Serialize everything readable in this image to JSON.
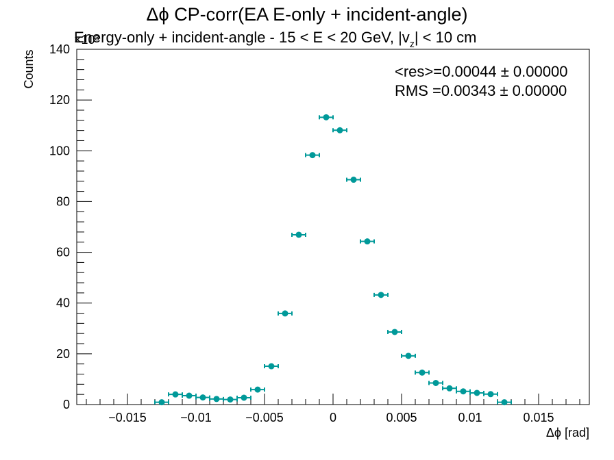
{
  "chart_data": {
    "type": "scatter",
    "title": "Δϕ CP-corr(EA E-only + incident-angle)",
    "subtitle_prefix": "Energy-only + incident-angle   -   15 < E < 20 GeV, |v",
    "subtitle_sub": "z",
    "subtitle_suffix": "| < 10 cm",
    "xlabel": "Δϕ  [rad]",
    "ylabel": "Counts",
    "y_exponent_label": "×10³",
    "xlim": [
      -0.0187,
      0.0187
    ],
    "ylim": [
      0,
      140
    ],
    "x_ticks": [
      {
        "value": -0.015,
        "label": "−0.015"
      },
      {
        "value": -0.01,
        "label": "−0.01"
      },
      {
        "value": -0.005,
        "label": "−0.005"
      },
      {
        "value": 0,
        "label": "0"
      },
      {
        "value": 0.005,
        "label": "0.005"
      },
      {
        "value": 0.01,
        "label": "0.01"
      },
      {
        "value": 0.015,
        "label": "0.015"
      }
    ],
    "y_ticks": [
      {
        "value": 0,
        "label": "0"
      },
      {
        "value": 20,
        "label": "20"
      },
      {
        "value": 40,
        "label": "40"
      },
      {
        "value": 60,
        "label": "60"
      },
      {
        "value": 80,
        "label": "80"
      },
      {
        "value": 100,
        "label": "100"
      },
      {
        "value": 120,
        "label": "120"
      },
      {
        "value": 140,
        "label": "140"
      }
    ],
    "bin_width": 0.001,
    "stats": [
      "<res>=0.00044 ± 0.00000",
      "RMS =0.00343 ± 0.00000"
    ],
    "marker_color": "#009999",
    "grid": false,
    "legend": "none",
    "points": [
      {
        "x": -0.0125,
        "y": 0.9
      },
      {
        "x": -0.0115,
        "y": 4.0
      },
      {
        "x": -0.0105,
        "y": 3.5
      },
      {
        "x": -0.0095,
        "y": 2.8
      },
      {
        "x": -0.0085,
        "y": 2.2
      },
      {
        "x": -0.0075,
        "y": 2.0
      },
      {
        "x": -0.0065,
        "y": 2.7
      },
      {
        "x": -0.0055,
        "y": 5.9
      },
      {
        "x": -0.0045,
        "y": 15.1
      },
      {
        "x": -0.0035,
        "y": 35.9
      },
      {
        "x": -0.0025,
        "y": 66.9
      },
      {
        "x": -0.0015,
        "y": 98.3
      },
      {
        "x": -0.0005,
        "y": 113.2
      },
      {
        "x": 0.0005,
        "y": 108.1
      },
      {
        "x": 0.0015,
        "y": 88.6
      },
      {
        "x": 0.0025,
        "y": 64.3
      },
      {
        "x": 0.0035,
        "y": 43.2
      },
      {
        "x": 0.0045,
        "y": 28.6
      },
      {
        "x": 0.0055,
        "y": 19.2
      },
      {
        "x": 0.0065,
        "y": 12.6
      },
      {
        "x": 0.0075,
        "y": 8.5
      },
      {
        "x": 0.0085,
        "y": 6.4
      },
      {
        "x": 0.0095,
        "y": 5.2
      },
      {
        "x": 0.0105,
        "y": 4.6
      },
      {
        "x": 0.0115,
        "y": 4.1
      },
      {
        "x": 0.0125,
        "y": 0.9
      }
    ]
  }
}
